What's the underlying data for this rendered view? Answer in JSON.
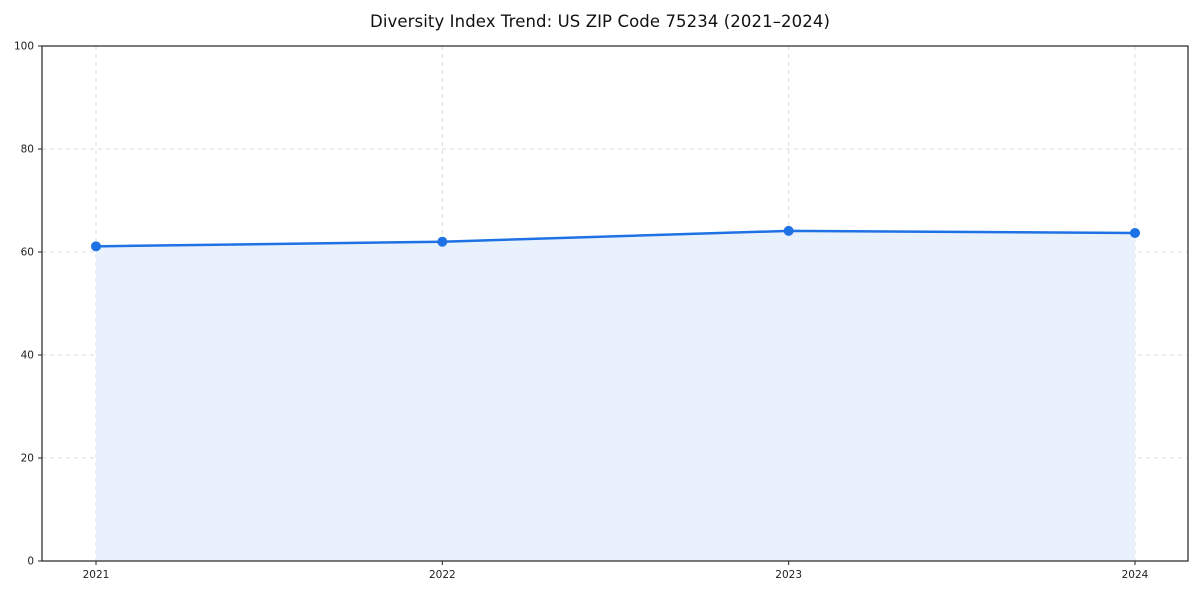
{
  "chart_data": {
    "type": "area",
    "title": "Diversity Index Trend: US ZIP Code 75234 (2021–2024)",
    "categories": [
      "2021",
      "2022",
      "2023",
      "2024"
    ],
    "series": [
      {
        "name": "Diversity Index",
        "values": [
          61.1,
          62.0,
          64.1,
          63.7
        ]
      }
    ],
    "xlabel": "",
    "ylabel": "",
    "ylim": [
      0,
      100
    ],
    "yticks": [
      0,
      20,
      40,
      60,
      80,
      100
    ],
    "grid": true,
    "grid_style": "dashed",
    "legend_position": "none",
    "colors": {
      "line": "#1f72e5",
      "marker": "#1f72e5",
      "fill": "#e9f1fd",
      "grid": "#dcdcdc",
      "axis": "#222222",
      "tick_text": "#222222",
      "background": "#ffffff"
    }
  }
}
